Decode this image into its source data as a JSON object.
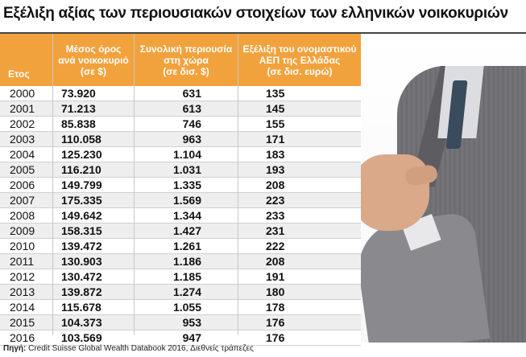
{
  "title": "Εξέλιξη αξίας των περιουσιακών στοιχείων των ελληνικών νοικοκυριών",
  "chart_data": {
    "type": "table",
    "columns": [
      {
        "label": "Ετος"
      },
      {
        "lines": [
          "Μέσος όρος",
          "ανά νοικοκυριό",
          "(σε $)"
        ]
      },
      {
        "lines": [
          "Συνολική περιουσία",
          "στη χώρα",
          "(σε δισ. $)"
        ]
      },
      {
        "lines": [
          "Εξέλιξη του ονομαστικού",
          "ΑΕΠ της Ελλάδας",
          "(σε δισ. ευρώ)"
        ]
      }
    ],
    "rows": [
      {
        "year": "2000",
        "avg": "73.920",
        "total": "631",
        "gdp": "135"
      },
      {
        "year": "2001",
        "avg": "71.213",
        "total": "613",
        "gdp": "145"
      },
      {
        "year": "2002",
        "avg": "85.838",
        "total": "746",
        "gdp": "155"
      },
      {
        "year": "2003",
        "avg": "110.058",
        "total": "963",
        "gdp": "171"
      },
      {
        "year": "2004",
        "avg": "125.230",
        "total": "1.104",
        "gdp": "183"
      },
      {
        "year": "2005",
        "avg": "116.210",
        "total": "1.031",
        "gdp": "193"
      },
      {
        "year": "2006",
        "avg": "149.799",
        "total": "1.335",
        "gdp": "208"
      },
      {
        "year": "2007",
        "avg": "175.335",
        "total": "1.569",
        "gdp": "223"
      },
      {
        "year": "2008",
        "avg": "149.642",
        "total": "1.344",
        "gdp": "233"
      },
      {
        "year": "2009",
        "avg": "158.315",
        "total": "1.427",
        "gdp": "231"
      },
      {
        "year": "2010",
        "avg": "139.472",
        "total": "1.261",
        "gdp": "222"
      },
      {
        "year": "2011",
        "avg": "130.903",
        "total": "1.186",
        "gdp": "208"
      },
      {
        "year": "2012",
        "avg": "130.472",
        "total": "1.185",
        "gdp": "191"
      },
      {
        "year": "2013",
        "avg": "139.872",
        "total": "1.274",
        "gdp": "180"
      },
      {
        "year": "2014",
        "avg": "115.678",
        "total": "1.055",
        "gdp": "178"
      },
      {
        "year": "2015",
        "avg": "104.373",
        "total": "953",
        "gdp": "176"
      },
      {
        "year": "2016",
        "avg": "103.569",
        "total": "947",
        "gdp": "176"
      }
    ]
  },
  "source": {
    "label": "Πηγή:",
    "text": "Credit Suisse Global Wealth Databook 2016, Διεθνείς τράπεζες"
  },
  "colors": {
    "header": "#f2a23c",
    "alt_row": "#eeeeee"
  }
}
